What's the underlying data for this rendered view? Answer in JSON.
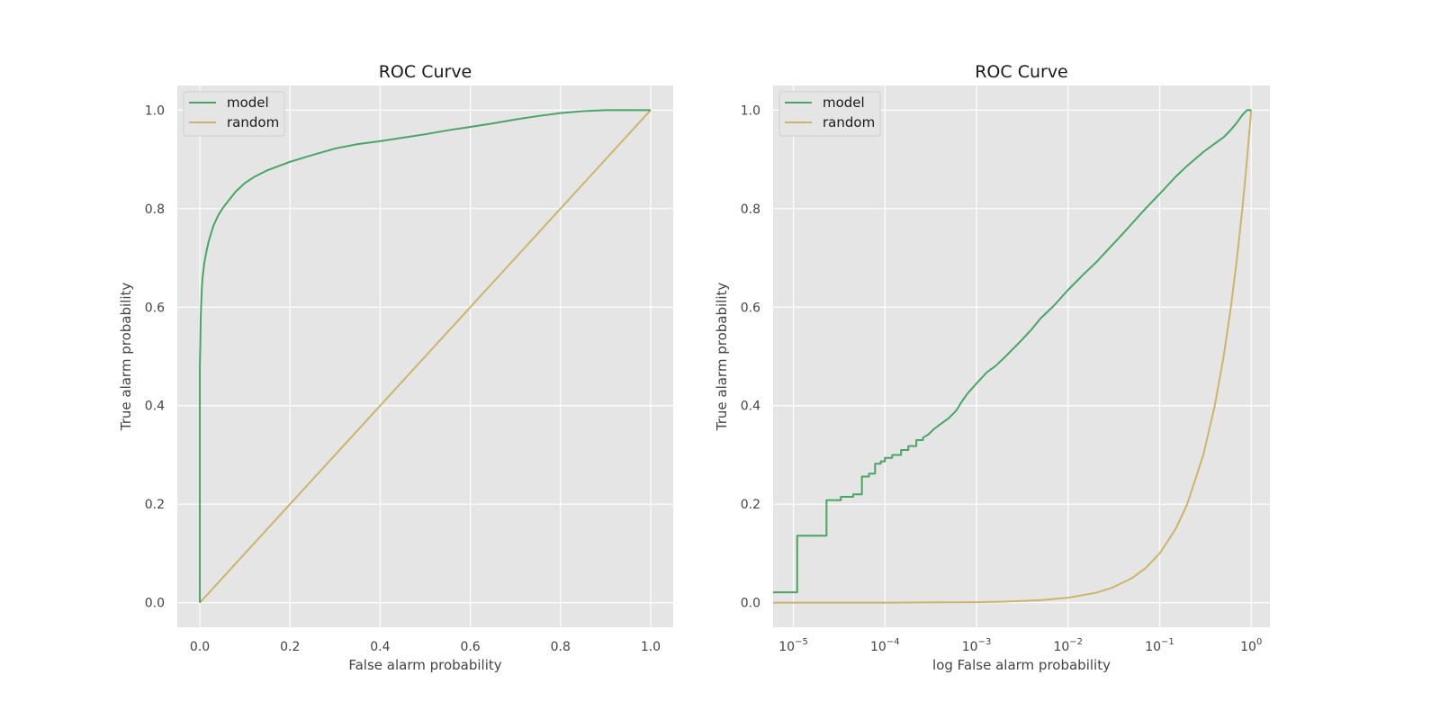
{
  "colors": {
    "model": "#4aa564",
    "random": "#ccb36e",
    "plot_bg": "#e5e5e5",
    "grid": "#ffffff",
    "legend_bg": "#e5e5e5",
    "legend_border": "#cfcfcf"
  },
  "chart_data": [
    {
      "type": "line",
      "title": "ROC Curve",
      "xlabel": "False alarm probability",
      "ylabel": "True alarm probability",
      "xscale": "linear",
      "xlim": [
        -0.05,
        1.05
      ],
      "ylim": [
        -0.05,
        1.05
      ],
      "x_ticks": [
        0.0,
        0.2,
        0.4,
        0.6,
        0.8,
        1.0
      ],
      "x_tick_labels": [
        "0.0",
        "0.2",
        "0.4",
        "0.6",
        "0.8",
        "1.0"
      ],
      "y_ticks": [
        0.0,
        0.2,
        0.4,
        0.6,
        0.8,
        1.0
      ],
      "y_tick_labels": [
        "0.0",
        "0.2",
        "0.4",
        "0.6",
        "0.8",
        "1.0"
      ],
      "grid": true,
      "legend": "upper-left",
      "series": [
        {
          "name": "model",
          "color": "#4aa564",
          "x": [
            0,
            0,
            0.001,
            0.002,
            0.004,
            0.006,
            0.01,
            0.015,
            0.02,
            0.03,
            0.04,
            0.05,
            0.06,
            0.08,
            0.1,
            0.12,
            0.15,
            0.2,
            0.25,
            0.3,
            0.35,
            0.4,
            0.45,
            0.5,
            0.55,
            0.6,
            0.65,
            0.7,
            0.75,
            0.8,
            0.85,
            0.9,
            0.95,
            1.0
          ],
          "y": [
            0,
            0.48,
            0.52,
            0.58,
            0.63,
            0.66,
            0.69,
            0.715,
            0.735,
            0.765,
            0.785,
            0.8,
            0.812,
            0.835,
            0.852,
            0.864,
            0.878,
            0.895,
            0.909,
            0.922,
            0.931,
            0.937,
            0.944,
            0.951,
            0.959,
            0.966,
            0.973,
            0.981,
            0.988,
            0.994,
            0.998,
            1.0,
            1.0,
            1.0
          ]
        },
        {
          "name": "random",
          "color": "#ccb36e",
          "x": [
            0,
            1
          ],
          "y": [
            0,
            1
          ]
        }
      ]
    },
    {
      "type": "line",
      "title": "ROC Curve",
      "xlabel": "log False alarm probability",
      "ylabel": "True alarm probability",
      "xscale": "log",
      "xlim": [
        6e-06,
        1.6
      ],
      "ylim": [
        -0.05,
        1.05
      ],
      "x_ticks": [
        1e-05,
        0.0001,
        0.001,
        0.01,
        0.1,
        1
      ],
      "x_tick_labels": [
        {
          "base": "10",
          "exp": "−5"
        },
        {
          "base": "10",
          "exp": "−4"
        },
        {
          "base": "10",
          "exp": "−3"
        },
        {
          "base": "10",
          "exp": "−2"
        },
        {
          "base": "10",
          "exp": "−1"
        },
        {
          "base": "10",
          "exp": "0"
        }
      ],
      "y_ticks": [
        0.0,
        0.2,
        0.4,
        0.6,
        0.8,
        1.0
      ],
      "y_tick_labels": [
        "0.0",
        "0.2",
        "0.4",
        "0.6",
        "0.8",
        "1.0"
      ],
      "grid": true,
      "legend": "upper-left",
      "series": [
        {
          "name": "model",
          "color": "#4aa564",
          "x": [
            6e-06,
            1.1e-05,
            1.1e-05,
            2.3e-05,
            2.3e-05,
            3.3e-05,
            3.3e-05,
            4.5e-05,
            4.5e-05,
            5.6e-05,
            5.6e-05,
            6.7e-05,
            6.7e-05,
            7.8e-05,
            7.8e-05,
            9e-05,
            9e-05,
            0.0001,
            0.0001,
            0.00012,
            0.00012,
            0.00015,
            0.00015,
            0.00018,
            0.00018,
            0.00022,
            0.00022,
            0.00026,
            0.00026,
            0.0003,
            0.00034,
            0.0004,
            0.0005,
            0.0006,
            0.0007,
            0.0008,
            0.001,
            0.0013,
            0.0016,
            0.002,
            0.003,
            0.004,
            0.005,
            0.007,
            0.01,
            0.015,
            0.02,
            0.03,
            0.04,
            0.05,
            0.07,
            0.1,
            0.15,
            0.2,
            0.3,
            0.4,
            0.5,
            0.6,
            0.7,
            0.8,
            0.9,
            1.0
          ],
          "y": [
            0.021,
            0.021,
            0.136,
            0.136,
            0.208,
            0.208,
            0.215,
            0.215,
            0.22,
            0.22,
            0.256,
            0.256,
            0.262,
            0.262,
            0.282,
            0.282,
            0.287,
            0.287,
            0.294,
            0.294,
            0.3,
            0.3,
            0.31,
            0.31,
            0.318,
            0.318,
            0.33,
            0.33,
            0.335,
            0.342,
            0.352,
            0.362,
            0.375,
            0.39,
            0.41,
            0.425,
            0.445,
            0.468,
            0.48,
            0.497,
            0.53,
            0.555,
            0.577,
            0.603,
            0.635,
            0.668,
            0.69,
            0.725,
            0.75,
            0.77,
            0.8,
            0.83,
            0.865,
            0.887,
            0.915,
            0.932,
            0.945,
            0.96,
            0.975,
            0.99,
            1.0,
            1.0
          ]
        },
        {
          "name": "random",
          "color": "#ccb36e",
          "x": [
            6e-06,
            1e-05,
            0.0001,
            0.001,
            0.002,
            0.005,
            0.01,
            0.02,
            0.03,
            0.05,
            0.07,
            0.1,
            0.15,
            0.2,
            0.3,
            0.4,
            0.5,
            0.6,
            0.7,
            0.8,
            0.9,
            1.0
          ],
          "y": [
            6e-06,
            1e-05,
            0.0001,
            0.001,
            0.002,
            0.005,
            0.01,
            0.02,
            0.03,
            0.05,
            0.07,
            0.1,
            0.15,
            0.2,
            0.3,
            0.4,
            0.5,
            0.6,
            0.7,
            0.8,
            0.9,
            1.0
          ]
        }
      ]
    }
  ]
}
